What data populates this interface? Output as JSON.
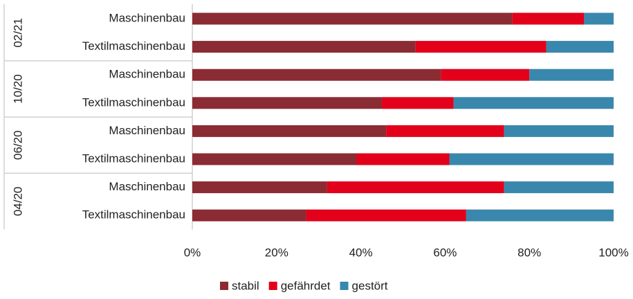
{
  "chart_data": {
    "type": "stacked-bar-horizontal",
    "groups": [
      {
        "label": "02/21",
        "categories": [
          "Maschinenbau",
          "Textilmaschinenbau"
        ]
      },
      {
        "label": "10/20",
        "categories": [
          "Maschinenbau",
          "Textilmaschinenbau"
        ]
      },
      {
        "label": "06/20",
        "categories": [
          "Maschinenbau",
          "Textilmaschinenbau"
        ]
      },
      {
        "label": "04/20",
        "categories": [
          "Maschinenbau",
          "Textilmaschinenbau"
        ]
      }
    ],
    "series": [
      {
        "name": "stabil",
        "color": "#8b2b33",
        "values": [
          76,
          53,
          59,
          45,
          46,
          39,
          32,
          27
        ]
      },
      {
        "name": "gefährdet",
        "color": "#e2001a",
        "values": [
          17,
          31,
          21,
          17,
          28,
          22,
          42,
          38
        ]
      },
      {
        "name": "gestört",
        "color": "#3a87ad",
        "values": [
          7,
          16,
          20,
          38,
          26,
          39,
          26,
          35
        ]
      }
    ],
    "xlim": [
      0,
      100
    ],
    "xticks": [
      {
        "value": 0,
        "label": "0%"
      },
      {
        "value": 20,
        "label": "20%"
      },
      {
        "value": 40,
        "label": "40%"
      },
      {
        "value": 60,
        "label": "60%"
      },
      {
        "value": 80,
        "label": "80%"
      },
      {
        "value": 100,
        "label": "100%"
      }
    ],
    "legend": "bottom"
  }
}
